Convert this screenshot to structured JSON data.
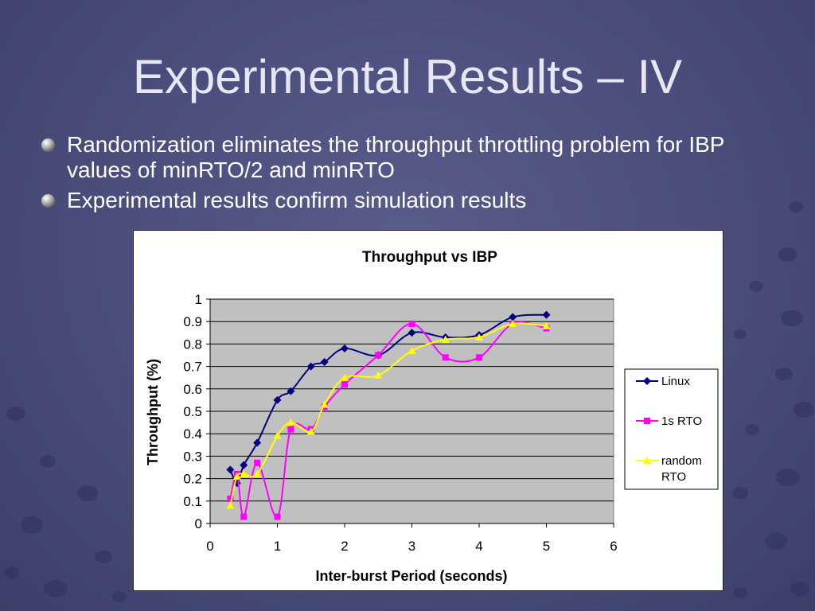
{
  "slide": {
    "title": "Experimental Results – IV",
    "bullets": [
      {
        "text": "Randomization eliminates the throughput throttling problem for IBP values of minRTO/2 and minRTO"
      },
      {
        "text": "Experimental results confirm simulation results"
      }
    ]
  },
  "chart_data": {
    "type": "line",
    "title": "Throughput vs IBP",
    "xlabel": "Inter-burst Period (seconds)",
    "ylabel": "Throughput (%)",
    "xlim": [
      0,
      6
    ],
    "ylim": [
      0,
      1
    ],
    "x_ticks": [
      "0",
      "1",
      "2",
      "3",
      "4",
      "5",
      "6"
    ],
    "y_ticks": [
      "0",
      "0.1",
      "0.2",
      "0.3",
      "0.4",
      "0.5",
      "0.6",
      "0.7",
      "0.8",
      "0.9",
      "1"
    ],
    "grid": true,
    "plot_background": "#c0c0c0",
    "legend_position": "right",
    "series": [
      {
        "name": "Linux",
        "color": "#000080",
        "marker": "diamond",
        "x": [
          0.3,
          0.4,
          0.5,
          0.7,
          1.0,
          1.2,
          1.5,
          1.7,
          2.0,
          2.5,
          3.0,
          3.5,
          4.0,
          4.5,
          5.0
        ],
        "y": [
          0.24,
          0.18,
          0.26,
          0.36,
          0.55,
          0.59,
          0.7,
          0.72,
          0.78,
          0.75,
          0.85,
          0.83,
          0.84,
          0.92,
          0.93
        ]
      },
      {
        "name": "1s RTO",
        "color": "#ff00ff",
        "marker": "square",
        "x": [
          0.3,
          0.4,
          0.5,
          0.7,
          1.0,
          1.2,
          1.5,
          1.7,
          2.0,
          2.5,
          3.0,
          3.5,
          4.0,
          4.5,
          5.0
        ],
        "y": [
          0.11,
          0.22,
          0.03,
          0.27,
          0.03,
          0.42,
          0.42,
          0.52,
          0.62,
          0.75,
          0.89,
          0.74,
          0.74,
          0.89,
          0.87
        ]
      },
      {
        "name": "random RTO",
        "color": "#ffff00",
        "marker": "triangle",
        "x": [
          0.3,
          0.4,
          0.5,
          0.7,
          1.0,
          1.2,
          1.5,
          1.7,
          2.0,
          2.5,
          3.0,
          3.5,
          4.0,
          4.5,
          5.0
        ],
        "y": [
          0.08,
          0.21,
          0.22,
          0.22,
          0.39,
          0.45,
          0.41,
          0.53,
          0.65,
          0.66,
          0.77,
          0.82,
          0.83,
          0.89,
          0.88
        ]
      }
    ]
  }
}
